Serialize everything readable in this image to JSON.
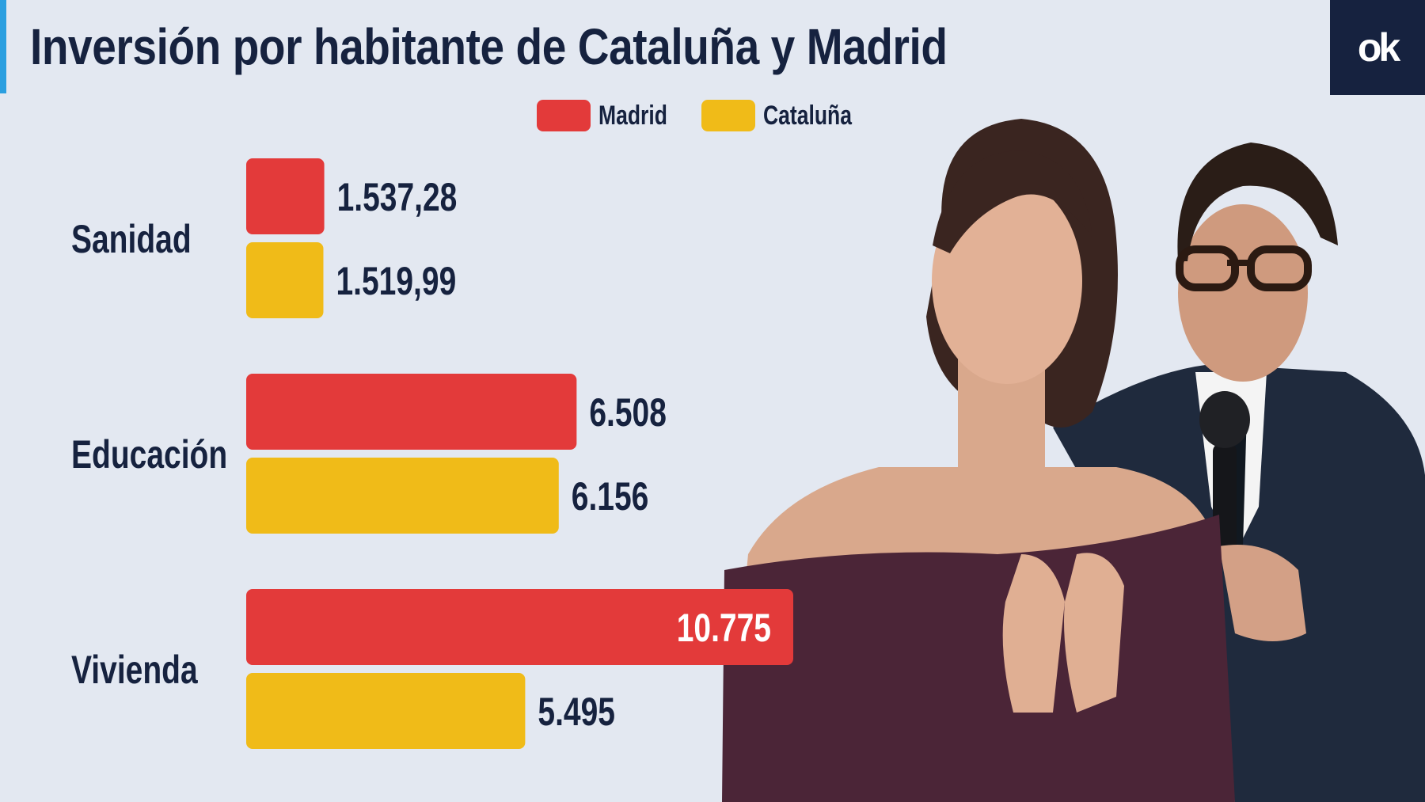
{
  "header": {
    "title": "Inversión por habitante de Cataluña y Madrid",
    "logo_text": "ok"
  },
  "colors": {
    "madrid": "#e33a3a",
    "cataluna": "#f0bb18",
    "navy": "#16223f",
    "accent": "#2b9fe0",
    "background": "#e3e8f1"
  },
  "chart_data": {
    "type": "bar",
    "orientation": "horizontal",
    "categories": [
      "Sanidad",
      "Educación",
      "Vivienda"
    ],
    "series": [
      {
        "name": "Madrid",
        "values": [
          1537.28,
          6508,
          10775
        ],
        "labels": [
          "1.537,28",
          "6.508",
          "10.775"
        ]
      },
      {
        "name": "Cataluña",
        "values": [
          1519.99,
          6156,
          5495
        ],
        "labels": [
          "1.519,99",
          "6.156",
          "5.495"
        ]
      }
    ],
    "legend_position": "top-center",
    "grid": false,
    "axis_visible": false,
    "xlim": [
      0,
      10775
    ]
  },
  "photo": {
    "description_icon": "politicians-photo"
  }
}
